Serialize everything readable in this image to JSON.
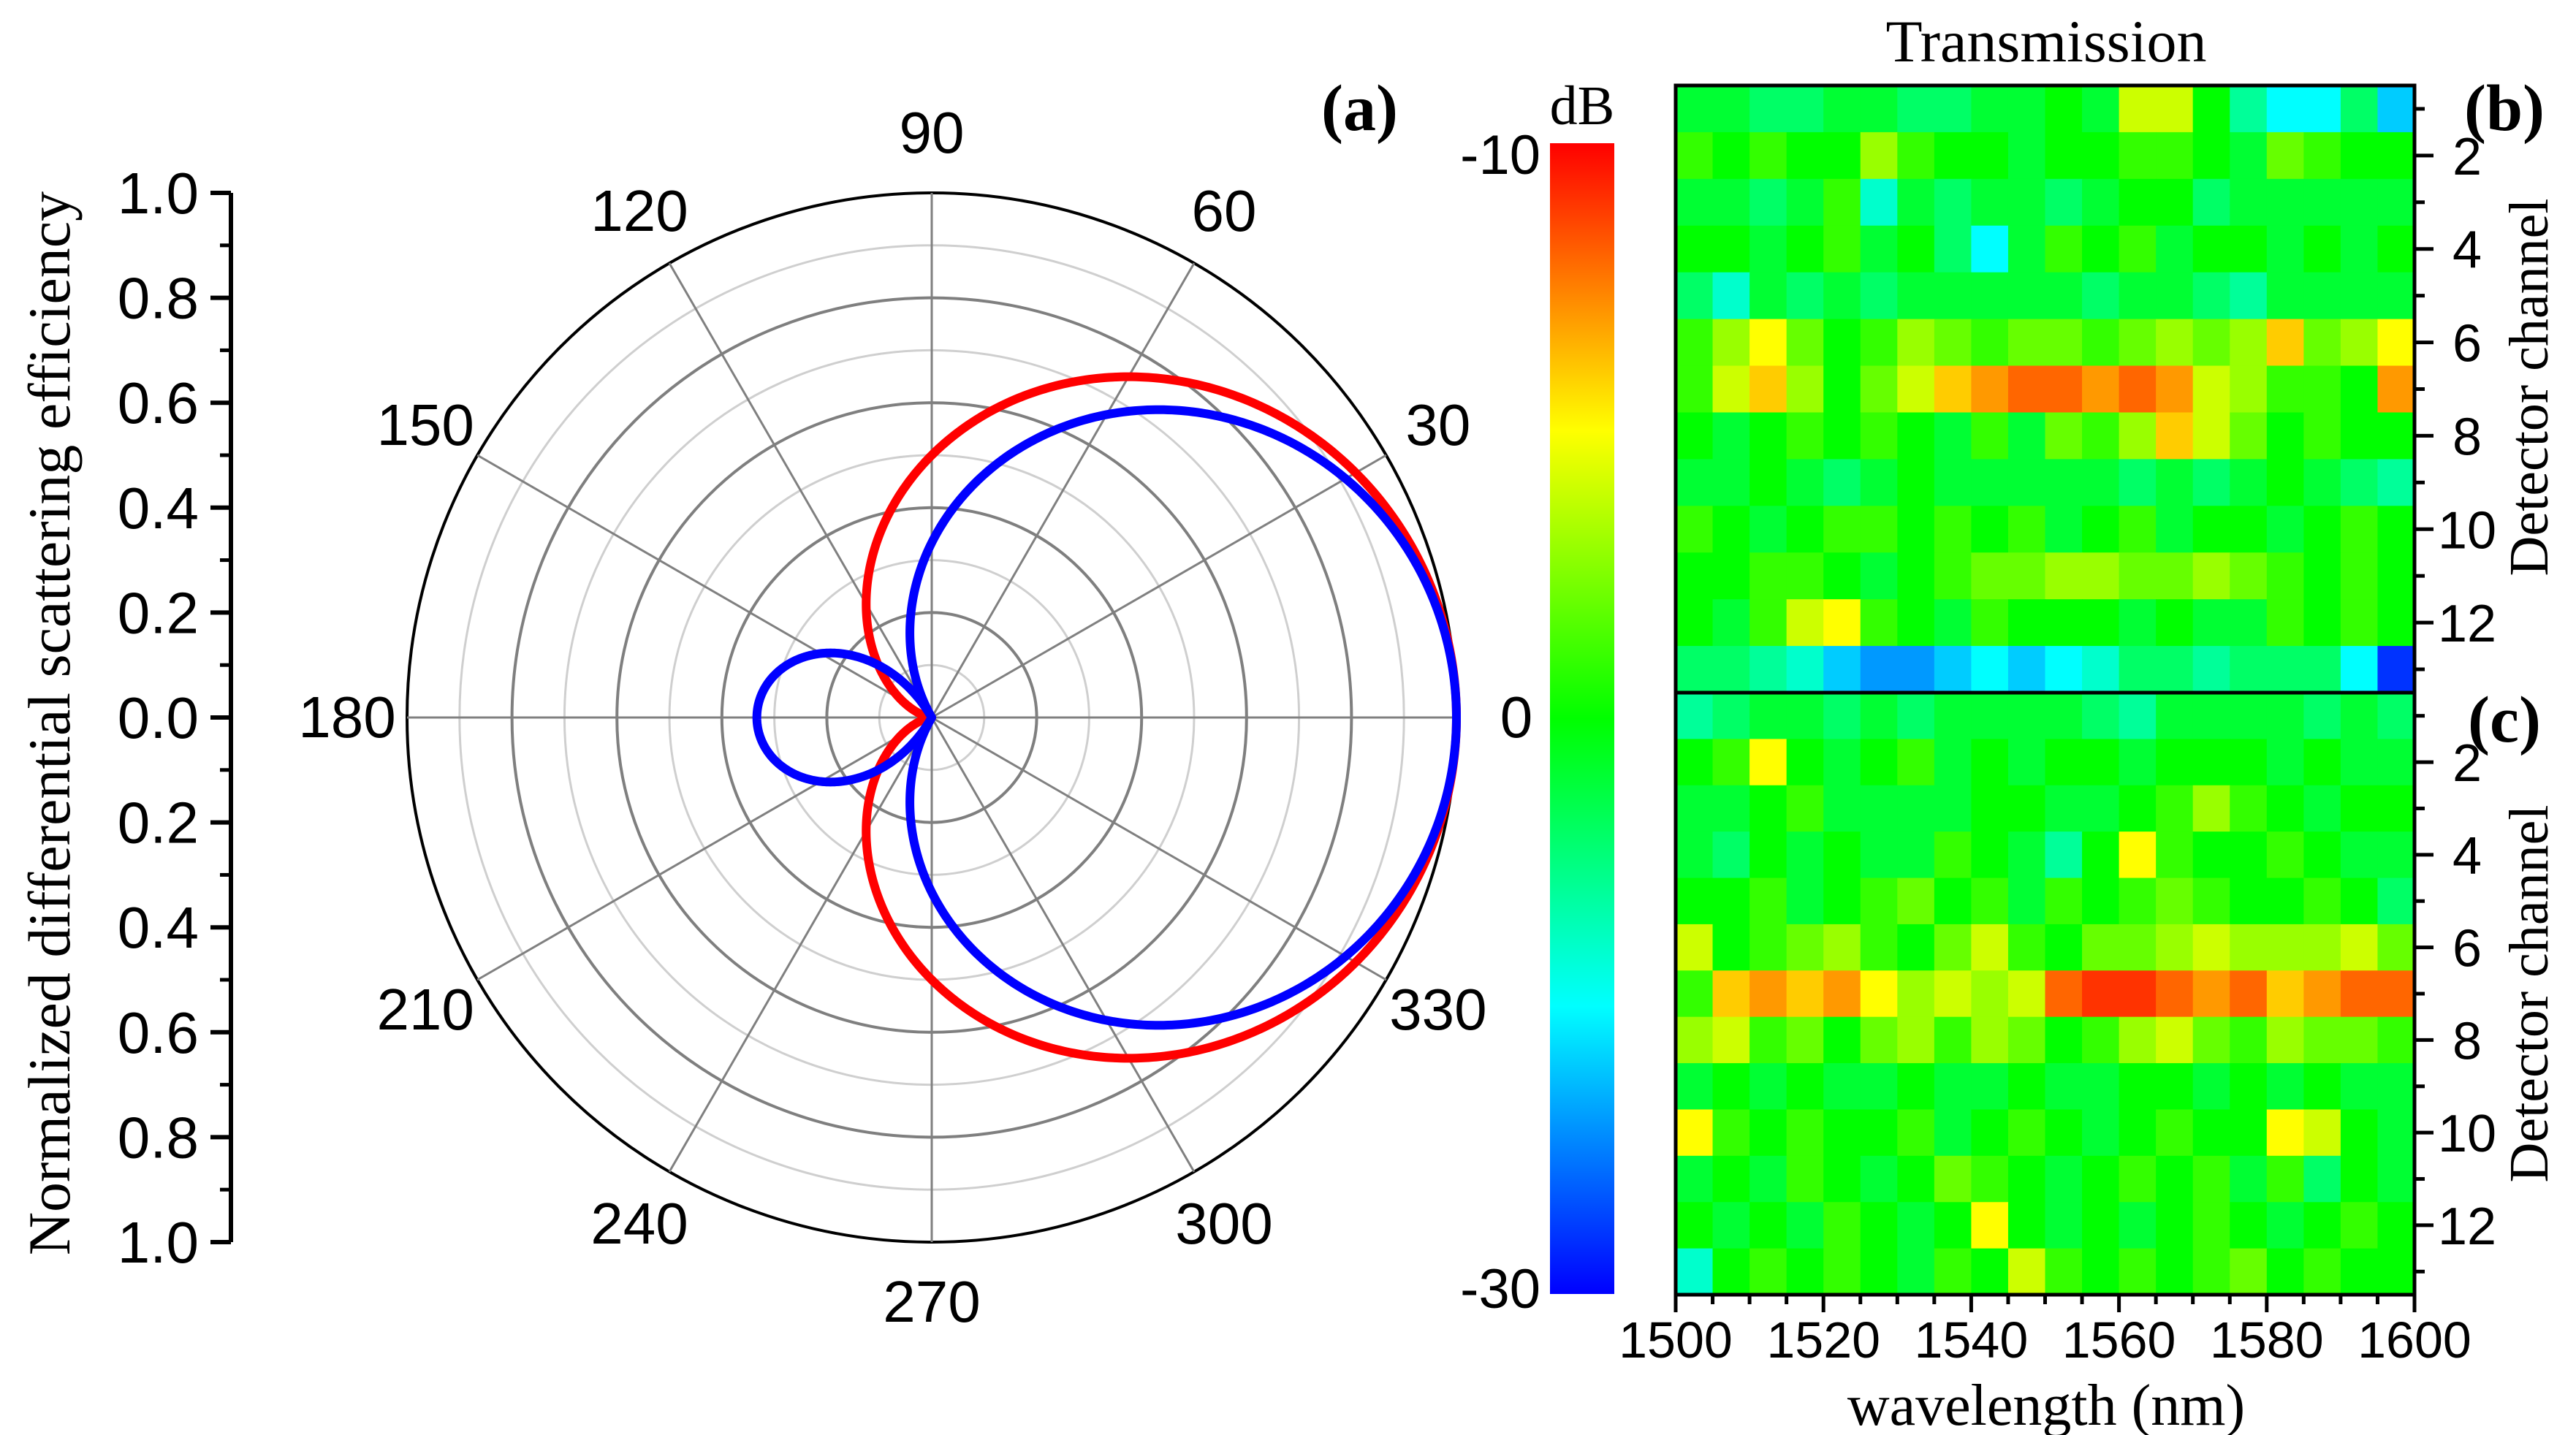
{
  "chart_data": [
    {
      "panel": "a",
      "type": "polar",
      "panel_label": "(a)",
      "ylabel": "Normalized differential scattering efficiency",
      "radial_axis": {
        "range": [
          0,
          1.0
        ],
        "ticks": [
          0,
          0.2,
          0.4,
          0.6,
          0.8,
          1.0
        ],
        "tick_labels_top": [
          "1.0",
          "0.8",
          "0.6",
          "0.4",
          "0.2"
        ],
        "tick_label_center": "0.0",
        "tick_labels_bottom": [
          "0.2",
          "0.4",
          "0.6",
          "0.8",
          "1.0"
        ]
      },
      "angular_axis": {
        "unit": "degrees",
        "ticks": [
          0,
          30,
          60,
          90,
          120,
          150,
          180,
          210,
          240,
          270,
          300,
          330
        ],
        "tick_labels": [
          "0",
          "30",
          "60",
          "90",
          "120",
          "150",
          "180",
          "210",
          "240",
          "270",
          "300",
          "330"
        ]
      },
      "grid": true,
      "series": [
        {
          "name": "red",
          "color": "#ff0000",
          "description_formula": "r = 0.5 (1 + cos θ)",
          "samples": {
            "theta": [
              0,
              30,
              60,
              90,
              120,
              150,
              180
            ],
            "r": [
              1.0,
              0.93,
              0.75,
              0.5,
              0.25,
              0.07,
              0.0
            ]
          }
        },
        {
          "name": "blue",
          "color": "#0000ff",
          "description_formula": "r = |(1 + 2cos θ) / 3|",
          "samples": {
            "theta": [
              0,
              30,
              60,
              90,
              120,
              150,
              180
            ],
            "r": [
              1.0,
              0.91,
              0.67,
              0.33,
              0.0,
              0.24,
              0.33
            ]
          }
        }
      ]
    },
    {
      "panel": "b",
      "type": "heatmap",
      "panel_label": "(b)",
      "title": "Transmission",
      "xlabel": "wavelength (nm)",
      "ylabel": "Detector channel",
      "xlim": [
        1500,
        1600
      ],
      "x_ticks": [
        "1500",
        "1520",
        "1540",
        "1560",
        "1580",
        "1600"
      ],
      "y_ticks": [
        "2",
        "4",
        "6",
        "8",
        "10",
        "12"
      ],
      "rows": 13,
      "columns": 20,
      "row_values_dB": [
        [
          -21,
          -21,
          -22,
          -22,
          -21,
          -21,
          -22,
          -22,
          -21,
          -21,
          -20,
          -21,
          -16,
          -16,
          -20,
          -23,
          -25,
          -25,
          -22,
          -26
        ],
        [
          -19,
          -20,
          -19,
          -20,
          -20,
          -17,
          -19,
          -20,
          -20,
          -21,
          -20,
          -20,
          -19,
          -19,
          -20,
          -21,
          -18,
          -19,
          -20,
          -20
        ],
        [
          -21,
          -21,
          -22,
          -21,
          -19,
          -24,
          -21,
          -22,
          -21,
          -21,
          -22,
          -21,
          -20,
          -20,
          -22,
          -21,
          -21,
          -21,
          -21,
          -21
        ],
        [
          -20,
          -20,
          -21,
          -20,
          -19,
          -21,
          -20,
          -22,
          -25,
          -21,
          -19,
          -20,
          -19,
          -21,
          -20,
          -20,
          -21,
          -20,
          -21,
          -20
        ],
        [
          -22,
          -24,
          -21,
          -22,
          -21,
          -22,
          -21,
          -21,
          -21,
          -21,
          -21,
          -22,
          -21,
          -21,
          -22,
          -23,
          -21,
          -21,
          -21,
          -21
        ],
        [
          -19,
          -17,
          -15,
          -18,
          -20,
          -19,
          -17,
          -18,
          -19,
          -18,
          -18,
          -19,
          -18,
          -17,
          -18,
          -17,
          -14,
          -18,
          -17,
          -15
        ],
        [
          -19,
          -16,
          -14,
          -17,
          -20,
          -18,
          -16,
          -14,
          -13,
          -12,
          -12,
          -13,
          -12,
          -13,
          -16,
          -17,
          -19,
          -19,
          -20,
          -13
        ],
        [
          -20,
          -21,
          -20,
          -19,
          -20,
          -19,
          -20,
          -21,
          -19,
          -21,
          -18,
          -19,
          -17,
          -14,
          -16,
          -18,
          -20,
          -19,
          -20,
          -20
        ],
        [
          -21,
          -21,
          -20,
          -21,
          -22,
          -21,
          -20,
          -21,
          -21,
          -21,
          -21,
          -21,
          -22,
          -21,
          -22,
          -21,
          -20,
          -21,
          -22,
          -23
        ],
        [
          -19,
          -20,
          -21,
          -20,
          -19,
          -19,
          -20,
          -19,
          -20,
          -19,
          -21,
          -20,
          -19,
          -21,
          -20,
          -20,
          -21,
          -20,
          -19,
          -20
        ],
        [
          -20,
          -20,
          -19,
          -19,
          -20,
          -21,
          -20,
          -19,
          -18,
          -18,
          -17,
          -17,
          -18,
          -18,
          -17,
          -18,
          -19,
          -20,
          -19,
          -20
        ],
        [
          -20,
          -21,
          -19,
          -16,
          -15,
          -19,
          -20,
          -21,
          -19,
          -20,
          -20,
          -20,
          -21,
          -20,
          -21,
          -21,
          -19,
          -20,
          -19,
          -20
        ],
        [
          -22,
          -22,
          -23,
          -24,
          -26,
          -27,
          -27,
          -26,
          -25,
          -26,
          -25,
          -24,
          -22,
          -22,
          -23,
          -22,
          -22,
          -22,
          -25,
          -29
        ]
      ]
    },
    {
      "panel": "c",
      "type": "heatmap",
      "panel_label": "(c)",
      "xlabel": "wavelength (nm)",
      "ylabel": "Detector channel",
      "xlim": [
        1500,
        1600
      ],
      "x_ticks": [
        "1500",
        "1520",
        "1540",
        "1560",
        "1580",
        "1600"
      ],
      "y_ticks": [
        "2",
        "4",
        "6",
        "8",
        "10",
        "12"
      ],
      "rows": 13,
      "columns": 20,
      "row_values_dB": [
        [
          -23,
          -22,
          -21,
          -21,
          -22,
          -21,
          -22,
          -21,
          -21,
          -21,
          -21,
          -22,
          -23,
          -21,
          -21,
          -21,
          -21,
          -22,
          -21,
          -22
        ],
        [
          -20,
          -19,
          -15,
          -20,
          -21,
          -20,
          -19,
          -21,
          -20,
          -21,
          -20,
          -20,
          -21,
          -20,
          -20,
          -20,
          -21,
          -20,
          -21,
          -21
        ],
        [
          -21,
          -21,
          -20,
          -19,
          -21,
          -21,
          -21,
          -21,
          -20,
          -20,
          -21,
          -21,
          -20,
          -19,
          -17,
          -19,
          -20,
          -21,
          -20,
          -20
        ],
        [
          -21,
          -22,
          -20,
          -21,
          -20,
          -21,
          -21,
          -19,
          -20,
          -21,
          -23,
          -20,
          -15,
          -19,
          -20,
          -20,
          -19,
          -20,
          -21,
          -21
        ],
        [
          -20,
          -20,
          -19,
          -21,
          -20,
          -19,
          -18,
          -20,
          -19,
          -21,
          -19,
          -20,
          -19,
          -18,
          -19,
          -20,
          -20,
          -19,
          -20,
          -22
        ],
        [
          -16,
          -20,
          -19,
          -18,
          -17,
          -19,
          -20,
          -18,
          -16,
          -19,
          -20,
          -18,
          -18,
          -17,
          -16,
          -17,
          -17,
          -17,
          -16,
          -18
        ],
        [
          -19,
          -14,
          -13,
          -14,
          -13,
          -15,
          -17,
          -16,
          -17,
          -16,
          -12,
          -11,
          -11,
          -12,
          -13,
          -12,
          -14,
          -13,
          -12,
          -12
        ],
        [
          -17,
          -16,
          -19,
          -18,
          -20,
          -18,
          -17,
          -19,
          -17,
          -18,
          -20,
          -19,
          -17,
          -16,
          -18,
          -19,
          -17,
          -18,
          -18,
          -19
        ],
        [
          -21,
          -20,
          -21,
          -20,
          -21,
          -21,
          -20,
          -21,
          -21,
          -20,
          -21,
          -21,
          -20,
          -20,
          -21,
          -20,
          -21,
          -20,
          -21,
          -21
        ],
        [
          -15,
          -19,
          -20,
          -19,
          -20,
          -20,
          -19,
          -21,
          -20,
          -19,
          -20,
          -21,
          -20,
          -19,
          -20,
          -20,
          -15,
          -16,
          -20,
          -21
        ],
        [
          -21,
          -20,
          -21,
          -19,
          -20,
          -21,
          -20,
          -18,
          -19,
          -20,
          -21,
          -20,
          -19,
          -20,
          -19,
          -21,
          -19,
          -22,
          -20,
          -21
        ],
        [
          -20,
          -21,
          -20,
          -21,
          -19,
          -20,
          -21,
          -20,
          -15,
          -20,
          -21,
          -20,
          -21,
          -20,
          -19,
          -20,
          -21,
          -20,
          -19,
          -20
        ],
        [
          -24,
          -20,
          -19,
          -20,
          -19,
          -20,
          -21,
          -19,
          -20,
          -16,
          -19,
          -20,
          -19,
          -20,
          -19,
          -18,
          -20,
          -19,
          -20,
          -20
        ]
      ]
    },
    {
      "panel": "colorbar",
      "type": "colorbar",
      "unit": "dB",
      "max_label": "-10",
      "min_label": "-30",
      "range": [
        -30,
        -10
      ],
      "colormap": [
        "#0000ff",
        "#00ffff",
        "#00ff00",
        "#ffff00",
        "#ff0000"
      ]
    }
  ]
}
